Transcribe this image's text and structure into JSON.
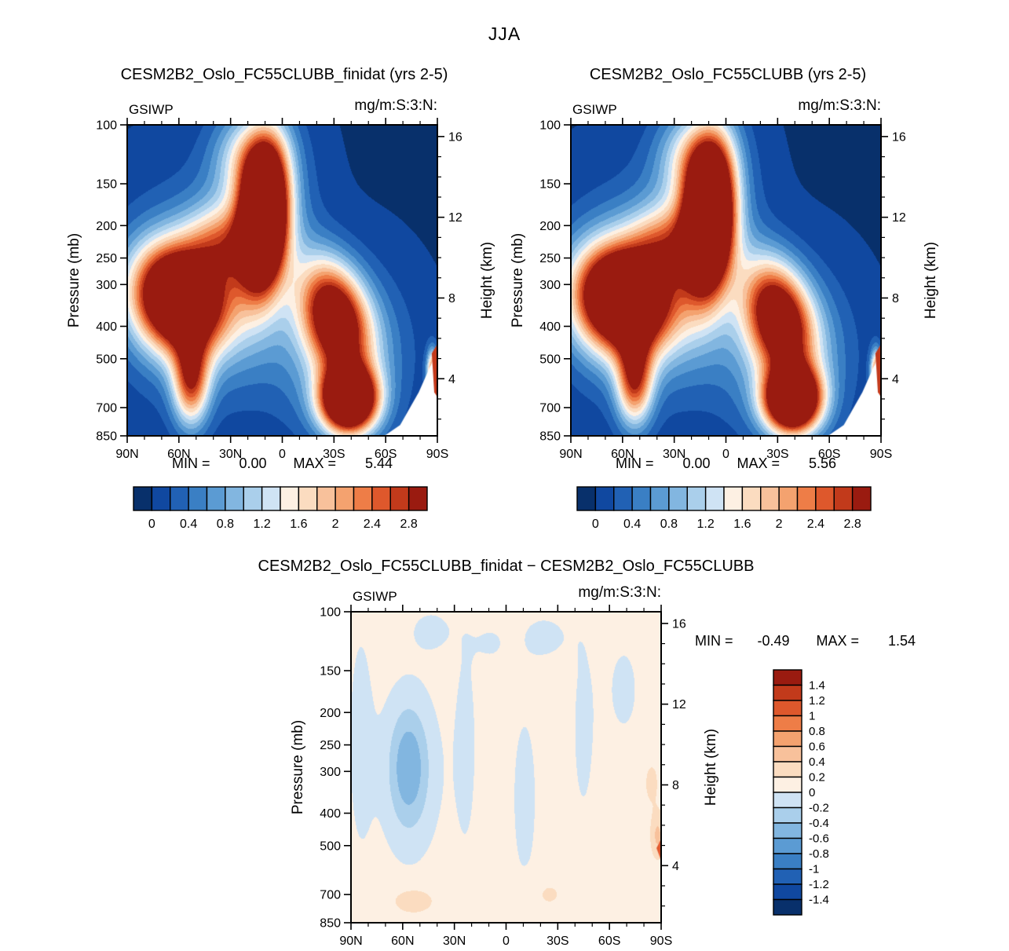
{
  "figure": {
    "title": "JJA"
  },
  "labels": {
    "min_label": "MIN  =",
    "max_label": "MAX  ="
  },
  "palette16": [
    "#08306b",
    "#1048a0",
    "#2161b4",
    "#3a7fc4",
    "#5b9bd3",
    "#82b6e0",
    "#aacfeb",
    "#cfe3f4",
    "#fdf0e3",
    "#fbdcc0",
    "#f8c19b",
    "#f4a26f",
    "#ee7d47",
    "#de582c",
    "#c23a1b",
    "#9a1b10"
  ],
  "chart_data": [
    {
      "type": "filled_contour",
      "title": "CESM2B2_Oslo_FC55CLUBB_finidat (yrs 2-5)",
      "variable": "GSIWP",
      "units": "mg/m:S:3:N:",
      "stats": {
        "min": "0.00",
        "max": "5.44"
      },
      "x_axis": {
        "tick_labels": [
          "90N",
          "60N",
          "30N",
          "0",
          "30S",
          "60S",
          "90S"
        ],
        "major_deg": [
          90,
          60,
          30,
          0,
          -30,
          -60,
          -90
        ],
        "minor_step_deg": 10
      },
      "y_left": {
        "title": "Pressure  (mb)",
        "ticks": [
          100,
          150,
          200,
          250,
          300,
          400,
          500,
          700,
          850
        ],
        "scale": "log-pressure",
        "range": [
          100,
          850
        ]
      },
      "y_right": {
        "title": "Height  (km)",
        "major_km": [
          16,
          12,
          8,
          4
        ],
        "minor_step_km": 1,
        "scale_height_km": 7.2
      },
      "contour_levels_start": 0,
      "contour_levels_step": 0.2,
      "contour_levels_count": 15,
      "colorbar_orientation": "horizontal",
      "colorbar_labels": [
        "0",
        "0.4",
        "0.8",
        "1.2",
        "1.6",
        "2",
        "2.4",
        "2.8"
      ],
      "field": {
        "base": -0.02,
        "blobs": [
          {
            "x": 0.44,
            "y": 0.295,
            "sx": 0.05,
            "sy": 0.15,
            "amp": 5.5,
            "rot": 0.05
          },
          {
            "x": 0.42,
            "y": 0.32,
            "sx": 0.105,
            "sy": 0.24,
            "amp": 1.1
          },
          {
            "x": 0.4,
            "y": 0.1,
            "sx": 0.075,
            "sy": 0.09,
            "amp": 1.0
          },
          {
            "x": 0.165,
            "y": 0.56,
            "sx": 0.095,
            "sy": 0.115,
            "amp": 4.6,
            "rot": -0.35
          },
          {
            "x": 0.3,
            "y": 0.38,
            "sx": 0.08,
            "sy": 0.08,
            "amp": 1.2
          },
          {
            "x": 0.22,
            "y": 0.55,
            "sx": 0.17,
            "sy": 0.22,
            "amp": 0.9
          },
          {
            "x": 0.205,
            "y": 0.82,
            "sx": 0.04,
            "sy": 0.1,
            "amp": 2.4
          },
          {
            "x": 0.67,
            "y": 0.62,
            "sx": 0.07,
            "sy": 0.125,
            "amp": 3.3,
            "rot": -0.25
          },
          {
            "x": 0.715,
            "y": 0.885,
            "sx": 0.06,
            "sy": 0.07,
            "amp": 5.2
          },
          {
            "x": 0.7,
            "y": 0.74,
            "sx": 0.13,
            "sy": 0.18,
            "amp": 1.0
          },
          {
            "x": 0.985,
            "y": 0.8,
            "sx": 0.012,
            "sy": 0.05,
            "amp": 2.5
          }
        ],
        "overlays": [
          {
            "color": "#ffffff",
            "points": [
              [
                0.8,
                1.02
              ],
              [
                0.88,
                0.965
              ],
              [
                0.94,
                0.86
              ],
              [
                1.02,
                0.68
              ],
              [
                1.02,
                1.02
              ]
            ]
          },
          {
            "color": "#c2391b",
            "points": [
              [
                0.982,
                0.735
              ],
              [
                1.0,
                0.705
              ],
              [
                1.0,
                0.875
              ],
              [
                0.99,
                0.86
              ]
            ]
          }
        ]
      }
    },
    {
      "type": "filled_contour",
      "title": "CESM2B2_Oslo_FC55CLUBB (yrs 2-5)",
      "variable": "GSIWP",
      "units": "mg/m:S:3:N:",
      "stats": {
        "min": "0.00",
        "max": "5.56"
      },
      "x_axis": {
        "tick_labels": [
          "90N",
          "60N",
          "30N",
          "0",
          "30S",
          "60S",
          "90S"
        ],
        "major_deg": [
          90,
          60,
          30,
          0,
          -30,
          -60,
          -90
        ],
        "minor_step_deg": 10
      },
      "y_left": {
        "title": "Pressure  (mb)",
        "ticks": [
          100,
          150,
          200,
          250,
          300,
          400,
          500,
          700,
          850
        ],
        "scale": "log-pressure",
        "range": [
          100,
          850
        ]
      },
      "y_right": {
        "title": "Height  (km)",
        "major_km": [
          16,
          12,
          8,
          4
        ],
        "minor_step_km": 1,
        "scale_height_km": 7.2
      },
      "contour_levels_start": 0,
      "contour_levels_step": 0.2,
      "contour_levels_count": 15,
      "colorbar_orientation": "horizontal",
      "colorbar_labels": [
        "0",
        "0.4",
        "0.8",
        "1.2",
        "1.6",
        "2",
        "2.4",
        "2.8"
      ],
      "field": {
        "base": -0.02,
        "blobs": [
          {
            "x": 0.445,
            "y": 0.3,
            "sx": 0.052,
            "sy": 0.155,
            "amp": 5.6,
            "rot": 0.05
          },
          {
            "x": 0.42,
            "y": 0.32,
            "sx": 0.105,
            "sy": 0.24,
            "amp": 1.1
          },
          {
            "x": 0.4,
            "y": 0.1,
            "sx": 0.075,
            "sy": 0.09,
            "amp": 1.0
          },
          {
            "x": 0.165,
            "y": 0.56,
            "sx": 0.1,
            "sy": 0.115,
            "amp": 4.9,
            "rot": -0.35
          },
          {
            "x": 0.3,
            "y": 0.38,
            "sx": 0.08,
            "sy": 0.08,
            "amp": 1.2
          },
          {
            "x": 0.22,
            "y": 0.55,
            "sx": 0.17,
            "sy": 0.22,
            "amp": 0.9
          },
          {
            "x": 0.205,
            "y": 0.82,
            "sx": 0.04,
            "sy": 0.1,
            "amp": 2.4
          },
          {
            "x": 0.67,
            "y": 0.62,
            "sx": 0.07,
            "sy": 0.125,
            "amp": 3.3,
            "rot": -0.25
          },
          {
            "x": 0.715,
            "y": 0.885,
            "sx": 0.06,
            "sy": 0.07,
            "amp": 5.2
          },
          {
            "x": 0.7,
            "y": 0.74,
            "sx": 0.13,
            "sy": 0.18,
            "amp": 1.0
          },
          {
            "x": 0.985,
            "y": 0.8,
            "sx": 0.012,
            "sy": 0.05,
            "amp": 2.5
          }
        ],
        "overlays": [
          {
            "color": "#ffffff",
            "points": [
              [
                0.8,
                1.02
              ],
              [
                0.88,
                0.965
              ],
              [
                0.94,
                0.86
              ],
              [
                1.02,
                0.68
              ],
              [
                1.02,
                1.02
              ]
            ]
          },
          {
            "color": "#c2391b",
            "points": [
              [
                0.982,
                0.735
              ],
              [
                1.0,
                0.705
              ],
              [
                1.0,
                0.875
              ],
              [
                0.99,
                0.86
              ]
            ]
          }
        ]
      }
    },
    {
      "type": "filled_contour_difference",
      "title": "CESM2B2_Oslo_FC55CLUBB_finidat  −  CESM2B2_Oslo_FC55CLUBB",
      "variable": "GSIWP",
      "units": "mg/m:S:3:N:",
      "stats": {
        "min": "-0.49",
        "max": "1.54"
      },
      "x_axis": {
        "tick_labels": [
          "90N",
          "60N",
          "30N",
          "0",
          "30S",
          "60S",
          "90S"
        ],
        "major_deg": [
          90,
          60,
          30,
          0,
          -30,
          -60,
          -90
        ],
        "minor_step_deg": 10
      },
      "y_left": {
        "title": "Pressure  (mb)",
        "ticks": [
          100,
          150,
          200,
          250,
          300,
          400,
          500,
          700,
          850
        ],
        "scale": "log-pressure",
        "range": [
          100,
          850
        ]
      },
      "y_right": {
        "title": "Height  (km)",
        "major_km": [
          16,
          12,
          8,
          4
        ],
        "minor_step_km": 1,
        "scale_height_km": 7.2
      },
      "contour_levels_start": -1.4,
      "contour_levels_step": 0.2,
      "contour_levels_count": 15,
      "colorbar_orientation": "vertical",
      "colorbar_labels": [
        "1.4",
        "1.2",
        "1",
        "0.8",
        "0.6",
        "0.4",
        "0.2",
        "0",
        "-0.2",
        "-0.4",
        "-0.6",
        "-0.8",
        "-1",
        "-1.2",
        "-1.4"
      ],
      "field": {
        "base": 0.1,
        "blobs": [
          {
            "x": 0.185,
            "y": 0.5,
            "sx": 0.042,
            "sy": 0.13,
            "amp": -0.52
          },
          {
            "x": 0.19,
            "y": 0.52,
            "sx": 0.085,
            "sy": 0.22,
            "amp": -0.18
          },
          {
            "x": 0.03,
            "y": 0.4,
            "sx": 0.03,
            "sy": 0.28,
            "amp": -0.16
          },
          {
            "x": 0.37,
            "y": 0.42,
            "sx": 0.03,
            "sy": 0.3,
            "amp": -0.14
          },
          {
            "x": 0.56,
            "y": 0.6,
            "sx": 0.04,
            "sy": 0.28,
            "amp": -0.14
          },
          {
            "x": 0.75,
            "y": 0.38,
            "sx": 0.032,
            "sy": 0.26,
            "amp": -0.14
          },
          {
            "x": 0.26,
            "y": 0.06,
            "sx": 0.05,
            "sy": 0.05,
            "amp": -0.15
          },
          {
            "x": 0.45,
            "y": 0.1,
            "sx": 0.04,
            "sy": 0.05,
            "amp": -0.12
          },
          {
            "x": 0.63,
            "y": 0.08,
            "sx": 0.06,
            "sy": 0.06,
            "amp": -0.14
          },
          {
            "x": 0.88,
            "y": 0.25,
            "sx": 0.05,
            "sy": 0.15,
            "amp": -0.13
          },
          {
            "x": 0.2,
            "y": 0.93,
            "sx": 0.055,
            "sy": 0.035,
            "amp": 0.22
          },
          {
            "x": 0.63,
            "y": 0.91,
            "sx": 0.05,
            "sy": 0.04,
            "amp": 0.13
          },
          {
            "x": 0.99,
            "y": 0.72,
            "sx": 0.015,
            "sy": 0.05,
            "amp": 0.35
          },
          {
            "x": 0.97,
            "y": 0.55,
            "sx": 0.02,
            "sy": 0.06,
            "amp": 0.15
          }
        ],
        "overlays": [
          {
            "color": "#e0592e",
            "points": [
              [
                0.985,
                0.76
              ],
              [
                1.0,
                0.73
              ],
              [
                1.0,
                0.8
              ]
            ]
          }
        ]
      }
    }
  ]
}
